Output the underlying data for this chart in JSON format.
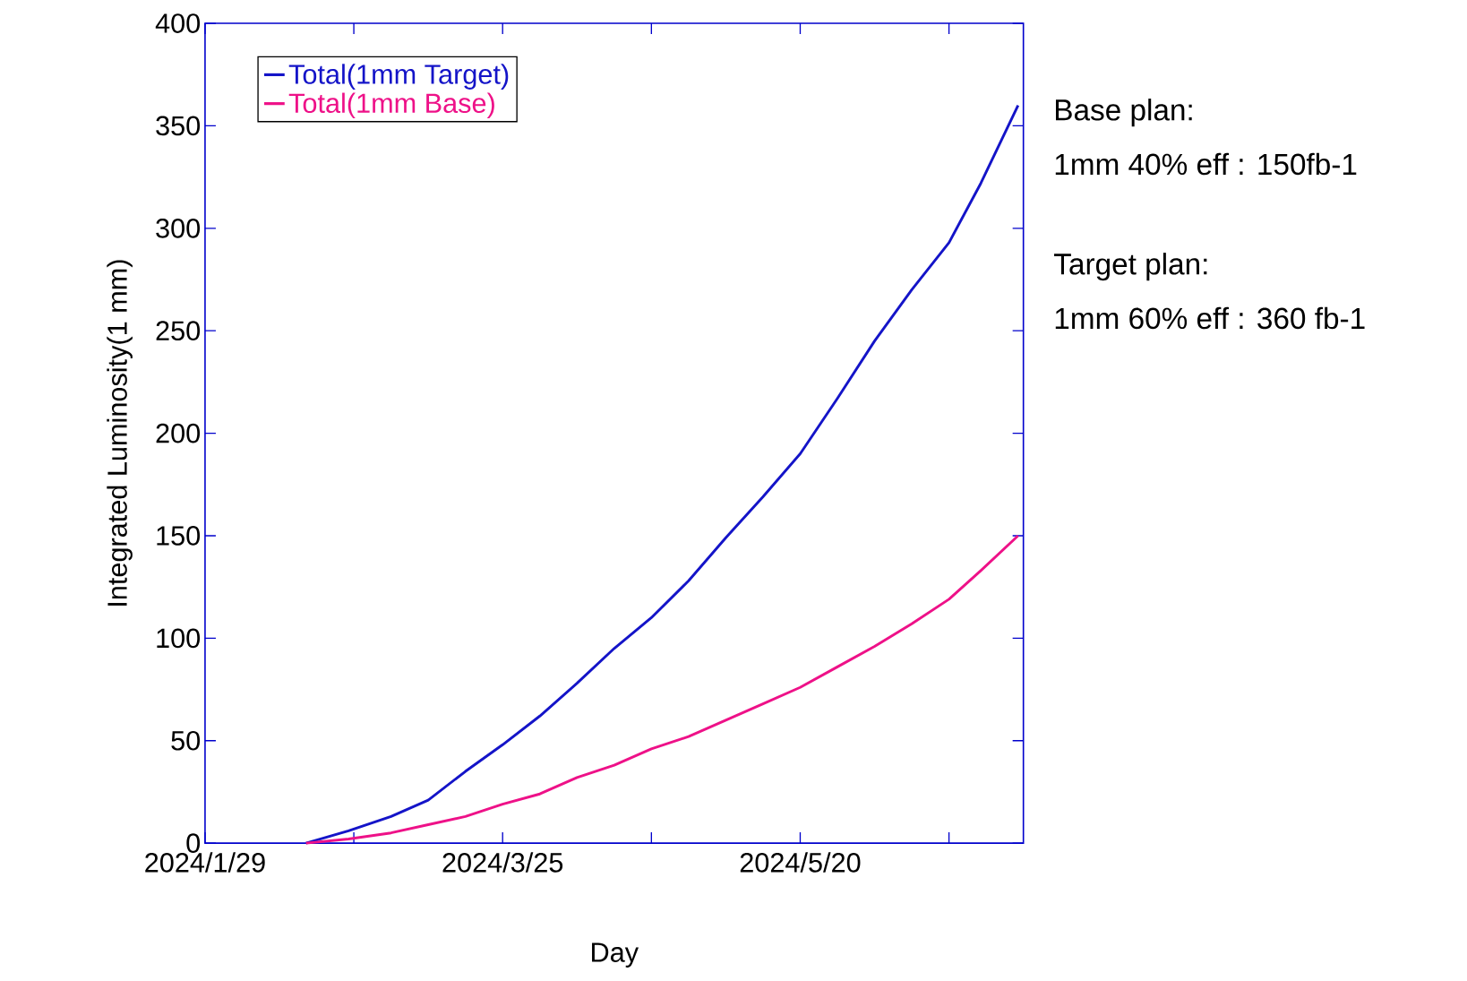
{
  "chart_data": {
    "type": "line",
    "xlabel": "Day",
    "ylabel": "Integrated Luminosity(1 mm)",
    "x": [
      "2024-02-17",
      "2024-02-25",
      "2024-03-04",
      "2024-03-11",
      "2024-03-18",
      "2024-03-25",
      "2024-04-01",
      "2024-04-08",
      "2024-04-15",
      "2024-04-22",
      "2024-04-29",
      "2024-05-06",
      "2024-05-13",
      "2024-05-20",
      "2024-05-27",
      "2024-06-03",
      "2024-06-10",
      "2024-06-17",
      "2024-06-23",
      "2024-06-30"
    ],
    "series": [
      {
        "name": "Total(1mm Target)",
        "color": "#1414c8",
        "values": [
          0,
          6,
          13,
          21,
          35,
          48,
          62,
          78,
          95,
          110,
          128,
          149,
          169,
          190,
          217,
          245,
          270,
          293,
          322,
          360
        ]
      },
      {
        "name": "Total(1mm Base)",
        "color": "#ee1188",
        "values": [
          0,
          2,
          5,
          9,
          13,
          19,
          24,
          32,
          38,
          46,
          52,
          60,
          68,
          76,
          86,
          96,
          107,
          119,
          133,
          150
        ]
      }
    ],
    "xlim": [
      "2024-01-29",
      "2024-07-01"
    ],
    "xticks": [
      {
        "value": "2024-01-29",
        "label": "2024/1/29"
      },
      {
        "value": "2024-02-26",
        "label": null
      },
      {
        "value": "2024-03-25",
        "label": "2024/3/25"
      },
      {
        "value": "2024-04-22",
        "label": null
      },
      {
        "value": "2024-05-20",
        "label": "2024/5/20"
      },
      {
        "value": "2024-06-17",
        "label": null
      }
    ],
    "ylim": [
      0,
      400
    ],
    "yticks": [
      0,
      50,
      100,
      150,
      200,
      250,
      300,
      350,
      400
    ],
    "legend": "top left",
    "line_style": "solid",
    "marker": "none",
    "annotations": [
      "Base plan:",
      "1mm 40% eff : 150fb-1",
      "Target plan:",
      "1mm 60% eff : 360 fb-1"
    ]
  }
}
